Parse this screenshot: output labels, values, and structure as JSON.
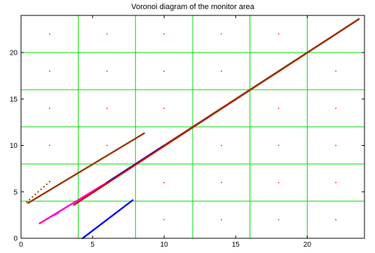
{
  "chart_data": {
    "type": "scatter",
    "title": "Voronoi diagram of the monitor area",
    "xlabel": "",
    "ylabel": "",
    "xlim": [
      0,
      24
    ],
    "ylim": [
      0,
      24
    ],
    "xticks": [
      0,
      5,
      10,
      15,
      20
    ],
    "yticks": [
      0,
      5,
      10,
      15,
      20
    ],
    "grid": false,
    "voronoi_edges": {
      "color": "#00dd00",
      "vertical_x": [
        4,
        8,
        12,
        16,
        20
      ],
      "horizontal_y": [
        4,
        8,
        12,
        16,
        20
      ]
    },
    "sites": {
      "color": "#ff0000",
      "x": [
        2,
        6,
        10,
        14,
        18,
        22
      ],
      "y": [
        2,
        6,
        10,
        14,
        18,
        22
      ],
      "rows": [
        {
          "y": 22,
          "x": [
            2,
            6,
            10,
            14,
            18
          ]
        },
        {
          "y": 18,
          "x": [
            2,
            6,
            10,
            14,
            18,
            22
          ]
        },
        {
          "y": 14,
          "x": [
            2,
            6,
            10,
            14,
            18,
            22
          ]
        },
        {
          "y": 10,
          "x": [
            2,
            6,
            10,
            14,
            18,
            22
          ]
        },
        {
          "y": 6,
          "x": [
            6,
            10,
            14,
            18,
            22
          ]
        },
        {
          "y": 2,
          "x": [
            6,
            10,
            14,
            18,
            22
          ]
        }
      ]
    },
    "series": [
      {
        "color": "#993300",
        "x": [
          0.4,
          2.0
        ],
        "y": [
          3.9,
          6.1
        ],
        "style": "dots"
      },
      {
        "color": "#993300",
        "x": [
          0.5,
          8.6
        ],
        "y": [
          3.8,
          11.3
        ],
        "style": "line"
      },
      {
        "color": "#ff00cc",
        "x": [
          1.3,
          6.0
        ],
        "y": [
          1.6,
          6.0
        ],
        "style": "line"
      },
      {
        "color": "#ff00cc",
        "x": [
          1.8,
          2.6
        ],
        "y": [
          2.1,
          2.7
        ],
        "style": "dots"
      },
      {
        "color": "#0000ff",
        "x": [
          4.3,
          7.8
        ],
        "y": [
          0.0,
          4.1
        ],
        "style": "line"
      },
      {
        "color": "#0000ff",
        "x": [
          6.0,
          10.0
        ],
        "y": [
          6.0,
          10.0
        ],
        "style": "line"
      },
      {
        "color": "#cc0000",
        "x": [
          3.7,
          23.6
        ],
        "y": [
          3.6,
          23.6
        ],
        "style": "line"
      },
      {
        "color": "#993300",
        "x": [
          10.0,
          23.6
        ],
        "y": [
          10.0,
          23.6
        ],
        "style": "line"
      }
    ]
  }
}
